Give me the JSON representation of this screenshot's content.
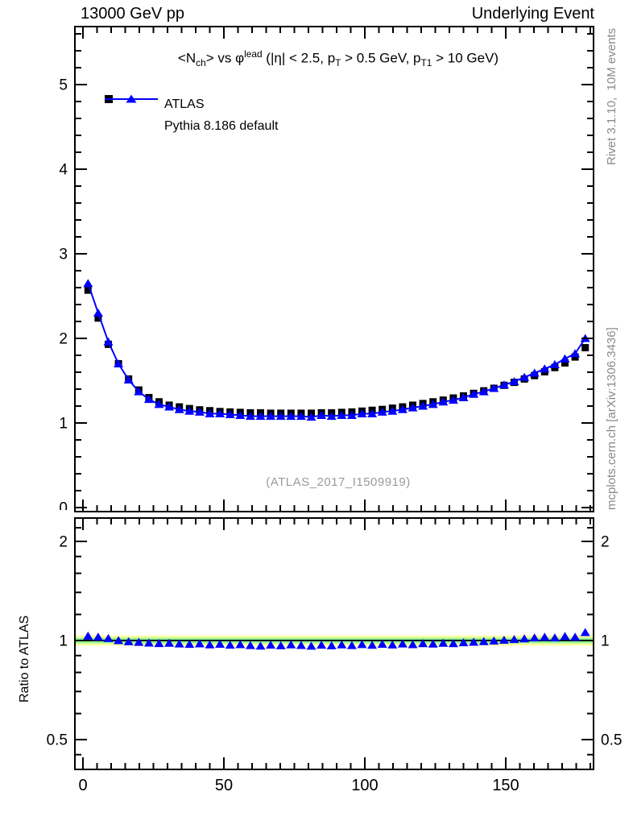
{
  "header": {
    "left": "13000 GeV pp",
    "right": "Underlying Event"
  },
  "title": {
    "plain": "<Nch> vs phi^lead (|eta| < 2.5, pT > 0.5 GeV, pT1 > 10 GeV)",
    "segments": [
      {
        "text": "<N"
      },
      {
        "text": "ch",
        "script": "sub"
      },
      {
        "text": "> vs "
      },
      {
        "text": "φ"
      },
      {
        "text": "lead",
        "script": "sup"
      },
      {
        "text": " (|η| < 2.5, p"
      },
      {
        "text": "T",
        "script": "sub"
      },
      {
        "text": " > 0.5 GeV, p"
      },
      {
        "text": "T1",
        "script": "sub"
      },
      {
        "text": " > 10 GeV)"
      }
    ]
  },
  "legend": {
    "entries": [
      {
        "label": "ATLAS",
        "marker": "filled-square",
        "color": "#000000"
      },
      {
        "label": "Pythia 8.186 default",
        "marker": "line-triangle",
        "color": "#0000ff"
      }
    ]
  },
  "watermark": "(ATLAS_2017_I1509919)",
  "side_notes": {
    "right_top": "Rivet 3.1.10,  10M events",
    "right_bottom": "mcplots.cern.ch [arXiv:1306.3436]"
  },
  "ratio_axis_label": "Ratio to ATLAS",
  "colors": {
    "mc_blue": "#0000ff",
    "data_black": "#000000",
    "band_yellow": "#ffff9e",
    "band_green": "#97f597",
    "gray_text": "#8a8a8a"
  },
  "chart_data": [
    {
      "type": "line",
      "panel": "main",
      "title": "<Nch> vs phi^lead (|eta| < 2.5, pT > 0.5 GeV, pT1 > 10 GeV)",
      "xlabel": "",
      "ylabel": "",
      "xlim": [
        -2.9,
        181.1
      ],
      "ylim": [
        -0.05,
        5.69
      ],
      "grid": false,
      "legend_position": "top-left",
      "x_ticks": {
        "values": [
          0,
          50,
          100,
          150
        ],
        "labels": [
          "",
          "",
          "",
          ""
        ],
        "minor_step": 5
      },
      "y_ticks": {
        "values": [
          0,
          1,
          2,
          3,
          4,
          5
        ],
        "labels": [
          "0",
          "1",
          "2",
          "3",
          "4",
          "5"
        ],
        "minor_step": 0.2
      },
      "x": [
        1.8,
        5.4,
        9,
        12.6,
        16.2,
        19.8,
        23.4,
        27,
        30.6,
        34.2,
        37.8,
        41.4,
        45,
        48.6,
        52.2,
        55.8,
        59.4,
        63,
        66.6,
        70.2,
        73.8,
        77.4,
        81,
        84.6,
        88.2,
        91.8,
        95.4,
        99,
        102.6,
        106.2,
        109.8,
        113.4,
        117,
        120.6,
        124.2,
        127.8,
        131.4,
        135,
        138.6,
        142.2,
        145.8,
        149.4,
        153,
        156.6,
        160.2,
        163.8,
        167.4,
        171,
        174.6,
        178.2
      ],
      "series": [
        {
          "name": "ATLAS",
          "marker": "square",
          "color": "#000000",
          "line": false,
          "values": [
            2.57,
            2.24,
            1.93,
            1.7,
            1.52,
            1.39,
            1.3,
            1.25,
            1.21,
            1.19,
            1.17,
            1.155,
            1.145,
            1.135,
            1.13,
            1.125,
            1.12,
            1.12,
            1.115,
            1.115,
            1.115,
            1.115,
            1.115,
            1.12,
            1.12,
            1.125,
            1.13,
            1.14,
            1.15,
            1.16,
            1.175,
            1.19,
            1.21,
            1.23,
            1.25,
            1.27,
            1.295,
            1.32,
            1.35,
            1.38,
            1.41,
            1.445,
            1.48,
            1.52,
            1.56,
            1.605,
            1.655,
            1.71,
            1.78,
            1.89
          ]
        },
        {
          "name": "Pythia 8.186 default",
          "marker": "triangle",
          "color": "#0000ff",
          "line": true,
          "values": [
            2.65,
            2.3,
            1.96,
            1.7,
            1.51,
            1.37,
            1.28,
            1.22,
            1.19,
            1.16,
            1.14,
            1.13,
            1.11,
            1.11,
            1.1,
            1.09,
            1.08,
            1.08,
            1.08,
            1.08,
            1.08,
            1.08,
            1.07,
            1.09,
            1.08,
            1.09,
            1.09,
            1.11,
            1.11,
            1.13,
            1.14,
            1.16,
            1.18,
            1.2,
            1.22,
            1.25,
            1.27,
            1.3,
            1.34,
            1.37,
            1.41,
            1.45,
            1.49,
            1.54,
            1.59,
            1.64,
            1.69,
            1.76,
            1.82,
            2.0
          ]
        }
      ]
    },
    {
      "type": "scatter",
      "panel": "ratio",
      "title": "Ratio to ATLAS",
      "xlabel": "",
      "ylabel": "Ratio to ATLAS",
      "yscale": "log",
      "xlim": [
        -2.9,
        181.1
      ],
      "ylim": [
        0.41,
        2.36
      ],
      "grid": false,
      "reference_line": 1,
      "bands": [
        {
          "lo": 0.965,
          "hi": 1.036,
          "color": "#ffff9e"
        },
        {
          "lo": 0.98,
          "hi": 1.02,
          "color": "#97f597"
        }
      ],
      "x_ticks": {
        "values": [
          0,
          50,
          100,
          150
        ],
        "labels": [
          "0",
          "50",
          "100",
          "150"
        ],
        "minor_step": 5
      },
      "y_ticks": {
        "values": [
          0.5,
          1,
          2
        ],
        "labels": [
          "0.5",
          "1",
          "2"
        ],
        "minor_values": [
          0.45,
          0.6,
          0.7,
          0.8,
          0.9,
          1.2,
          1.4,
          1.6,
          1.8,
          2.2
        ]
      },
      "x": [
        1.8,
        5.4,
        9,
        12.6,
        16.2,
        19.8,
        23.4,
        27,
        30.6,
        34.2,
        37.8,
        41.4,
        45,
        48.6,
        52.2,
        55.8,
        59.4,
        63,
        66.6,
        70.2,
        73.8,
        77.4,
        81,
        84.6,
        88.2,
        91.8,
        95.4,
        99,
        102.6,
        106.2,
        109.8,
        113.4,
        117,
        120.6,
        124.2,
        127.8,
        131.4,
        135,
        138.6,
        142.2,
        145.8,
        149.4,
        153,
        156.6,
        160.2,
        163.8,
        167.4,
        171,
        174.6,
        178.2
      ],
      "series": [
        {
          "name": "Pythia 8.186 default / ATLAS",
          "marker": "triangle",
          "color": "#0000ff",
          "line": false,
          "values": [
            1.032,
            1.025,
            1.015,
            1.0,
            0.992,
            0.988,
            0.983,
            0.98,
            0.982,
            0.977,
            0.974,
            0.978,
            0.971,
            0.975,
            0.969,
            0.972,
            0.966,
            0.963,
            0.969,
            0.965,
            0.971,
            0.967,
            0.962,
            0.969,
            0.965,
            0.971,
            0.966,
            0.973,
            0.968,
            0.975,
            0.97,
            0.977,
            0.972,
            0.979,
            0.976,
            0.982,
            0.979,
            0.985,
            0.989,
            0.993,
            0.997,
            1.003,
            1.008,
            1.013,
            1.019,
            1.024,
            1.019,
            1.029,
            1.024,
            1.058
          ]
        }
      ]
    }
  ]
}
